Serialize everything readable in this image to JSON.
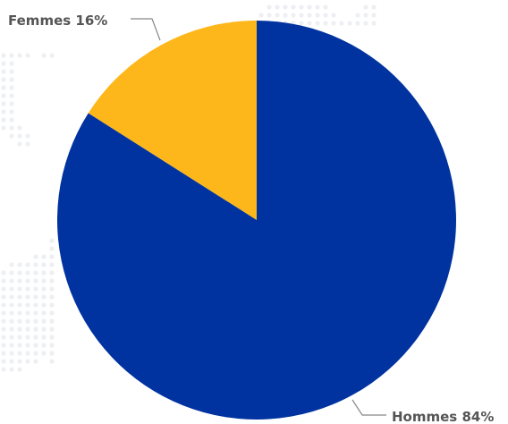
{
  "chart_data": {
    "type": "pie",
    "title": "",
    "legend": "none",
    "slices": [
      {
        "label": "Femmes 16%",
        "value": 16,
        "color": "#FDB71A"
      },
      {
        "label": "Hommes 84%",
        "value": 84,
        "color": "#0033A0"
      }
    ]
  },
  "colors": {
    "background_dots": "#EDEFF2",
    "leader_line": "#888888"
  }
}
